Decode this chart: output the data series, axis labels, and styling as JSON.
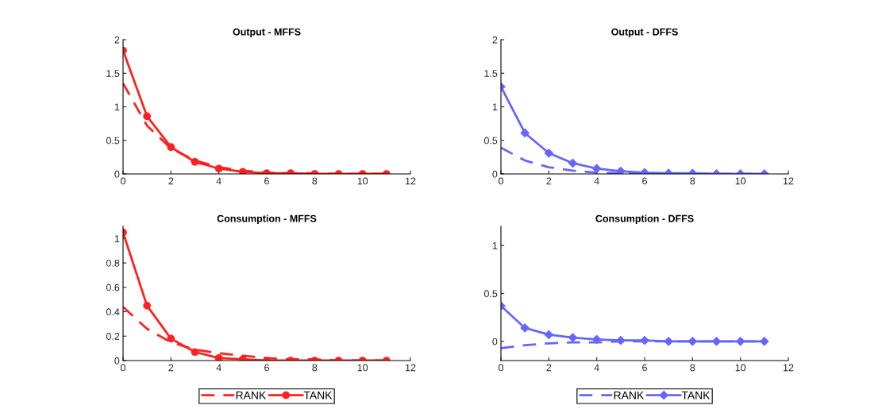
{
  "chart_data": [
    {
      "type": "line",
      "title": "Output - MFFS",
      "x": [
        0,
        1,
        2,
        3,
        4,
        5,
        6,
        7,
        8,
        9,
        10,
        11
      ],
      "xlim": [
        0,
        12
      ],
      "xticks": [
        0,
        2,
        4,
        6,
        8,
        10,
        12
      ],
      "ylim": [
        0,
        2
      ],
      "yticks": [
        0,
        0.5,
        1,
        1.5,
        2
      ],
      "grid": false,
      "legend": false,
      "series": [
        {
          "color": "#ff2020",
          "line_style": "dashed",
          "marker": "none",
          "values": [
            1.35,
            0.72,
            0.38,
            0.2,
            0.1,
            0.05,
            0.02,
            0.01,
            0.01,
            0,
            0,
            0
          ]
        },
        {
          "color": "#ff2020",
          "line_style": "solid",
          "marker": "circle",
          "values": [
            1.84,
            0.86,
            0.4,
            0.18,
            0.08,
            0.03,
            0.01,
            0.01,
            0,
            0,
            0,
            0
          ]
        }
      ]
    },
    {
      "type": "line",
      "title": "Output - DFFS",
      "x": [
        0,
        1,
        2,
        3,
        4,
        5,
        6,
        7,
        8,
        9,
        10,
        11
      ],
      "xlim": [
        0,
        12
      ],
      "xticks": [
        0,
        2,
        4,
        6,
        8,
        10,
        12
      ],
      "ylim": [
        0,
        2
      ],
      "yticks": [
        0,
        0.5,
        1,
        1.5,
        2
      ],
      "grid": false,
      "legend": false,
      "series": [
        {
          "color": "#6666ff",
          "line_style": "dashed",
          "marker": "none",
          "values": [
            0.39,
            0.2,
            0.1,
            0.05,
            0.02,
            0.01,
            0.01,
            0,
            0,
            0,
            0,
            0
          ]
        },
        {
          "color": "#6666ff",
          "line_style": "solid",
          "marker": "diamond",
          "values": [
            1.3,
            0.61,
            0.31,
            0.16,
            0.08,
            0.04,
            0.02,
            0.01,
            0.01,
            0,
            0,
            0
          ]
        }
      ]
    },
    {
      "type": "line",
      "title": "Consumption - MFFS",
      "x": [
        0,
        1,
        2,
        3,
        4,
        5,
        6,
        7,
        8,
        9,
        10,
        11
      ],
      "xlim": [
        0,
        12
      ],
      "xticks": [
        0,
        2,
        4,
        6,
        8,
        10,
        12
      ],
      "ylim": [
        0,
        1.1
      ],
      "yticks": [
        0,
        0.2,
        0.4,
        0.6,
        0.8,
        1
      ],
      "grid": false,
      "legend": "bottom",
      "series": [
        {
          "name": "RANK",
          "color": "#ff2020",
          "line_style": "dashed",
          "marker": "none",
          "values": [
            0.44,
            0.26,
            0.15,
            0.09,
            0.06,
            0.04,
            0.02,
            0.01,
            0.01,
            0,
            0,
            0
          ]
        },
        {
          "name": "TANK",
          "color": "#ff2020",
          "line_style": "solid",
          "marker": "circle",
          "values": [
            1.05,
            0.45,
            0.18,
            0.07,
            0.02,
            0.01,
            0,
            0,
            0,
            0,
            0,
            0
          ]
        }
      ]
    },
    {
      "type": "line",
      "title": "Consumption - DFFS",
      "x": [
        0,
        1,
        2,
        3,
        4,
        5,
        6,
        7,
        8,
        9,
        10,
        11
      ],
      "xlim": [
        0,
        12
      ],
      "xticks": [
        0,
        2,
        4,
        6,
        8,
        10,
        12
      ],
      "ylim": [
        -0.2,
        1.2
      ],
      "yticks": [
        0,
        0.5,
        1
      ],
      "grid": false,
      "legend": "bottom",
      "series": [
        {
          "name": "RANK",
          "color": "#6666ff",
          "line_style": "dashed",
          "marker": "none",
          "values": [
            -0.07,
            -0.04,
            -0.02,
            -0.01,
            -0.01,
            0,
            0,
            0,
            0,
            0,
            0,
            0
          ]
        },
        {
          "name": "TANK",
          "color": "#6666ff",
          "line_style": "solid",
          "marker": "diamond",
          "values": [
            0.37,
            0.14,
            0.07,
            0.04,
            0.02,
            0.01,
            0.01,
            0,
            0,
            0,
            0,
            0
          ]
        }
      ]
    }
  ]
}
